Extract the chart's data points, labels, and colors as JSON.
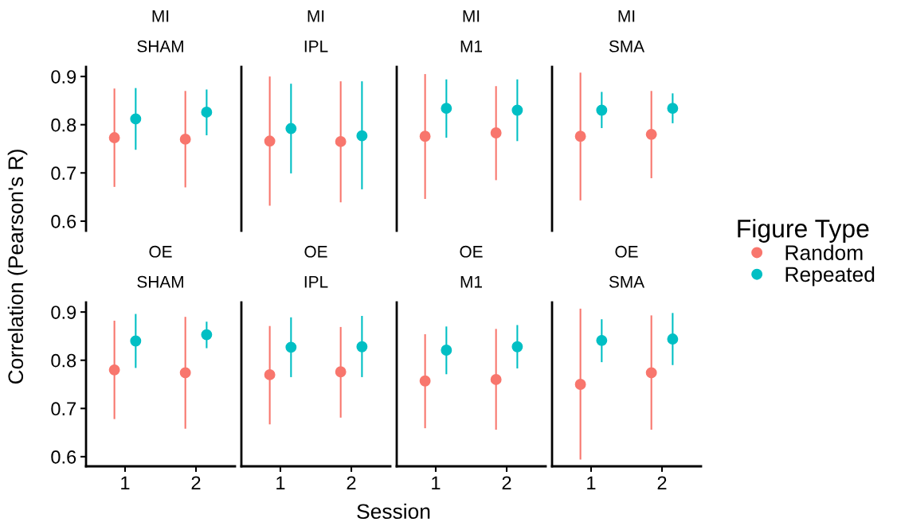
{
  "chart_data": [
    {
      "type": "scatter",
      "title": "MI",
      "subtitle": "SHAM",
      "ylabel": "Correlation (Pearson's R)",
      "legend_title": "Figure Type",
      "legend": "right",
      "categories": [
        "1",
        "2"
      ],
      "ylim": [
        0.58,
        0.92
      ],
      "yticks": [
        0.6,
        0.7,
        0.8,
        0.9
      ],
      "tick_labels": "y",
      "marker": "circle",
      "series": [
        {
          "name": "Random",
          "color": "#f8766d",
          "values": [
            0.773,
            0.77
          ],
          "errors": [
            [
              0.671,
              0.875
            ],
            [
              0.67,
              0.87
            ]
          ]
        },
        {
          "name": "Repeated",
          "color": "#00bfc4",
          "values": [
            0.812,
            0.826
          ],
          "errors": [
            [
              0.748,
              0.876
            ],
            [
              0.778,
              0.873
            ]
          ]
        }
      ]
    },
    {
      "type": "scatter",
      "title": "MI",
      "subtitle": "IPL",
      "categories": [
        "1",
        "2"
      ],
      "ylim": [
        0.58,
        0.92
      ],
      "yticks": [
        0.6,
        0.7,
        0.8,
        0.9
      ],
      "tick_labels": false,
      "marker": "circle",
      "series": [
        {
          "color": "#f8766d",
          "values": [
            0.766,
            0.765
          ],
          "errors": [
            [
              0.632,
              0.9
            ],
            [
              0.639,
              0.89
            ]
          ]
        },
        {
          "color": "#00bfc4",
          "values": [
            0.792,
            0.777
          ],
          "errors": [
            [
              0.699,
              0.885
            ],
            [
              0.666,
              0.89
            ]
          ]
        }
      ]
    },
    {
      "type": "scatter",
      "title": "MI",
      "subtitle": "M1",
      "categories": [
        "1",
        "2"
      ],
      "ylim": [
        0.58,
        0.92
      ],
      "yticks": [
        0.6,
        0.7,
        0.8,
        0.9
      ],
      "tick_labels": false,
      "marker": "circle",
      "series": [
        {
          "color": "#f8766d",
          "values": [
            0.776,
            0.783
          ],
          "errors": [
            [
              0.646,
              0.905
            ],
            [
              0.685,
              0.88
            ]
          ]
        },
        {
          "color": "#00bfc4",
          "values": [
            0.834,
            0.83
          ],
          "errors": [
            [
              0.773,
              0.894
            ],
            [
              0.766,
              0.894
            ]
          ]
        }
      ]
    },
    {
      "type": "scatter",
      "title": "MI",
      "subtitle": "SMA",
      "categories": [
        "1",
        "2"
      ],
      "ylim": [
        0.58,
        0.92
      ],
      "yticks": [
        0.6,
        0.7,
        0.8,
        0.9
      ],
      "tick_labels": false,
      "marker": "circle",
      "series": [
        {
          "color": "#f8766d",
          "values": [
            0.776,
            0.78
          ],
          "errors": [
            [
              0.643,
              0.908
            ],
            [
              0.689,
              0.87
            ]
          ]
        },
        {
          "color": "#00bfc4",
          "values": [
            0.83,
            0.834
          ],
          "errors": [
            [
              0.793,
              0.868
            ],
            [
              0.803,
              0.865
            ]
          ]
        }
      ]
    },
    {
      "type": "scatter",
      "title": "OE",
      "subtitle": "SHAM",
      "xlabel": "Session",
      "categories": [
        "1",
        "2"
      ],
      "ylim": [
        0.58,
        0.92
      ],
      "yticks": [
        0.6,
        0.7,
        0.8,
        0.9
      ],
      "marker": "circle",
      "series": [
        {
          "color": "#f8766d",
          "values": [
            0.78,
            0.774
          ],
          "errors": [
            [
              0.678,
              0.882
            ],
            [
              0.658,
              0.89
            ]
          ]
        },
        {
          "color": "#00bfc4",
          "values": [
            0.84,
            0.853
          ],
          "errors": [
            [
              0.784,
              0.896
            ],
            [
              0.825,
              0.88
            ]
          ]
        }
      ]
    },
    {
      "type": "scatter",
      "title": "OE",
      "subtitle": "IPL",
      "categories": [
        "1",
        "2"
      ],
      "ylim": [
        0.58,
        0.92
      ],
      "yticks": [
        0.6,
        0.7,
        0.8,
        0.9
      ],
      "tick_labels": "x",
      "marker": "circle",
      "series": [
        {
          "color": "#f8766d",
          "values": [
            0.77,
            0.776
          ],
          "errors": [
            [
              0.667,
              0.871
            ],
            [
              0.681,
              0.869
            ]
          ]
        },
        {
          "color": "#00bfc4",
          "values": [
            0.827,
            0.828
          ],
          "errors": [
            [
              0.765,
              0.889
            ],
            [
              0.765,
              0.892
            ]
          ]
        }
      ]
    },
    {
      "type": "scatter",
      "title": "OE",
      "subtitle": "M1",
      "categories": [
        "1",
        "2"
      ],
      "ylim": [
        0.58,
        0.92
      ],
      "yticks": [
        0.6,
        0.7,
        0.8,
        0.9
      ],
      "tick_labels": "x",
      "marker": "circle",
      "series": [
        {
          "color": "#f8766d",
          "values": [
            0.757,
            0.76
          ],
          "errors": [
            [
              0.659,
              0.854
            ],
            [
              0.656,
              0.865
            ]
          ]
        },
        {
          "color": "#00bfc4",
          "values": [
            0.821,
            0.828
          ],
          "errors": [
            [
              0.771,
              0.87
            ],
            [
              0.783,
              0.873
            ]
          ]
        }
      ]
    },
    {
      "type": "scatter",
      "title": "OE",
      "subtitle": "SMA",
      "categories": [
        "1",
        "2"
      ],
      "ylim": [
        0.58,
        0.92
      ],
      "yticks": [
        0.6,
        0.7,
        0.8,
        0.9
      ],
      "tick_labels": "x",
      "marker": "circle",
      "series": [
        {
          "color": "#f8766d",
          "values": [
            0.75,
            0.774
          ],
          "errors": [
            [
              0.594,
              0.907
            ],
            [
              0.656,
              0.893
            ]
          ]
        },
        {
          "color": "#00bfc4",
          "values": [
            0.841,
            0.844
          ],
          "errors": [
            [
              0.796,
              0.885
            ],
            [
              0.79,
              0.898
            ]
          ]
        }
      ]
    }
  ]
}
